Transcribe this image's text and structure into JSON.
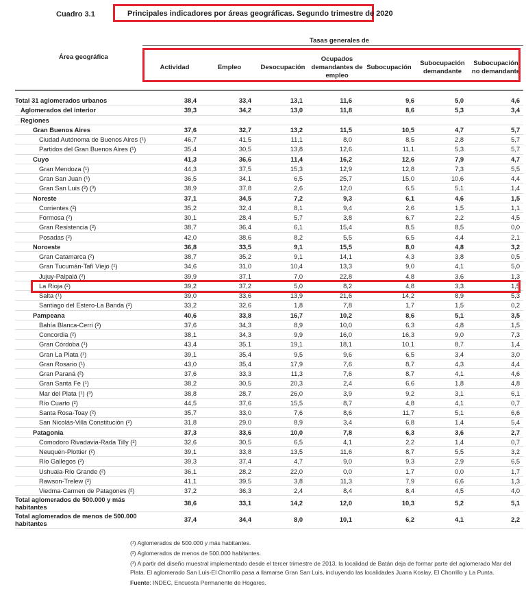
{
  "cuadro": "Cuadro 3.1",
  "title": "Principales indicadores por áreas geográficas. Segundo trimestre de 2020",
  "area_header": "Área geográfica",
  "group_header": "Tasas generales de",
  "columns": [
    "Actividad",
    "Empleo",
    "Desocupación",
    "Ocupados demandantes de empleo",
    "Subocupación",
    "Subocupación demandante",
    "Subocupación no demandante"
  ],
  "rows": [
    {
      "label": "Total 31 aglomerados urbanos",
      "level": 0,
      "bold": true,
      "values": [
        "38,4",
        "33,4",
        "13,1",
        "11,6",
        "9,6",
        "5,0",
        "4,6"
      ]
    },
    {
      "label": "Aglomerados del interior",
      "level": 1,
      "bold": true,
      "values": [
        "39,3",
        "34,2",
        "13,0",
        "11,8",
        "8,6",
        "5,3",
        "3,4"
      ]
    },
    {
      "label": "Regiones",
      "level": 1,
      "bold": true,
      "values": []
    },
    {
      "label": "Gran Buenos Aires",
      "level": 2,
      "bold": true,
      "values": [
        "37,6",
        "32,7",
        "13,2",
        "11,5",
        "10,5",
        "4,7",
        "5,7"
      ]
    },
    {
      "label": "Ciudad Autónoma de Buenos Aires (¹)",
      "level": 3,
      "bold": false,
      "values": [
        "46,7",
        "41,5",
        "11,1",
        "8,0",
        "8,5",
        "2,8",
        "5,7"
      ]
    },
    {
      "label": "Partidos del Gran Buenos Aires (¹)",
      "level": 3,
      "bold": false,
      "values": [
        "35,4",
        "30,5",
        "13,8",
        "12,6",
        "11,1",
        "5,3",
        "5,7"
      ]
    },
    {
      "label": "Cuyo",
      "level": 2,
      "bold": true,
      "values": [
        "41,3",
        "36,6",
        "11,4",
        "16,2",
        "12,6",
        "7,9",
        "4,7"
      ]
    },
    {
      "label": "Gran Mendoza (¹)",
      "level": 3,
      "bold": false,
      "values": [
        "44,3",
        "37,5",
        "15,3",
        "12,9",
        "12,8",
        "7,3",
        "5,5"
      ]
    },
    {
      "label": "Gran San Juan (¹)",
      "level": 3,
      "bold": false,
      "values": [
        "36,5",
        "34,1",
        "6,5",
        "25,7",
        "15,0",
        "10,6",
        "4,4"
      ]
    },
    {
      "label": "Gran San Luis (²) (³)",
      "level": 3,
      "bold": false,
      "values": [
        "38,9",
        "37,8",
        "2,6",
        "12,0",
        "6,5",
        "5,1",
        "1,4"
      ]
    },
    {
      "label": "Noreste",
      "level": 2,
      "bold": true,
      "values": [
        "37,1",
        "34,5",
        "7,2",
        "9,3",
        "6,1",
        "4,6",
        "1,5"
      ]
    },
    {
      "label": "Corrientes (²)",
      "level": 3,
      "bold": false,
      "values": [
        "35,2",
        "32,4",
        "8,1",
        "9,4",
        "2,6",
        "1,5",
        "1,1"
      ]
    },
    {
      "label": "Formosa (²)",
      "level": 3,
      "bold": false,
      "values": [
        "30,1",
        "28,4",
        "5,7",
        "3,8",
        "6,7",
        "2,2",
        "4,5"
      ]
    },
    {
      "label": "Gran Resistencia (²)",
      "level": 3,
      "bold": false,
      "values": [
        "38,7",
        "36,4",
        "6,1",
        "15,4",
        "8,5",
        "8,5",
        "0,0"
      ]
    },
    {
      "label": "Posadas (²)",
      "level": 3,
      "bold": false,
      "values": [
        "42,0",
        "38,6",
        "8,2",
        "5,5",
        "6,5",
        "4,4",
        "2,1"
      ]
    },
    {
      "label": "Noroeste",
      "level": 2,
      "bold": true,
      "values": [
        "36,8",
        "33,5",
        "9,1",
        "15,5",
        "8,0",
        "4,8",
        "3,2"
      ]
    },
    {
      "label": "Gran Catamarca (²)",
      "level": 3,
      "bold": false,
      "values": [
        "38,7",
        "35,2",
        "9,1",
        "14,1",
        "4,3",
        "3,8",
        "0,5"
      ]
    },
    {
      "label": "Gran Tucumán-Tafí Viejo (¹)",
      "level": 3,
      "bold": false,
      "values": [
        "34,6",
        "31,0",
        "10,4",
        "13,3",
        "9,0",
        "4,1",
        "5,0"
      ]
    },
    {
      "label": "Jujuy-Palpalá (²)",
      "level": 3,
      "bold": false,
      "values": [
        "39,9",
        "37,1",
        "7,0",
        "22,8",
        "4,8",
        "3,6",
        "1,3"
      ]
    },
    {
      "label": "La Rioja (²)",
      "level": 3,
      "bold": false,
      "values": [
        "39,2",
        "37,2",
        "5,0",
        "8,2",
        "4,8",
        "3,3",
        "1,5"
      ]
    },
    {
      "label": "Salta (¹)",
      "level": 3,
      "bold": false,
      "values": [
        "39,0",
        "33,6",
        "13,9",
        "21,6",
        "14,2",
        "8,9",
        "5,3"
      ]
    },
    {
      "label": "Santiago del Estero-La Banda (²)",
      "level": 3,
      "bold": false,
      "values": [
        "33,2",
        "32,6",
        "1,8",
        "7,8",
        "1,7",
        "1,5",
        "0,2"
      ]
    },
    {
      "label": "Pampeana",
      "level": 2,
      "bold": true,
      "values": [
        "40,6",
        "33,8",
        "16,7",
        "10,2",
        "8,6",
        "5,1",
        "3,5"
      ]
    },
    {
      "label": "Bahía Blanca-Cerri (²)",
      "level": 3,
      "bold": false,
      "values": [
        "37,6",
        "34,3",
        "8,9",
        "10,0",
        "6,3",
        "4,8",
        "1,5"
      ]
    },
    {
      "label": "Concordia (²)",
      "level": 3,
      "bold": false,
      "values": [
        "38,1",
        "34,3",
        "9,9",
        "16,0",
        "16,3",
        "9,0",
        "7,3"
      ]
    },
    {
      "label": "Gran Córdoba (¹)",
      "level": 3,
      "bold": false,
      "values": [
        "43,4",
        "35,1",
        "19,1",
        "18,1",
        "10,1",
        "8,7",
        "1,4"
      ]
    },
    {
      "label": "Gran La Plata (¹)",
      "level": 3,
      "bold": false,
      "values": [
        "39,1",
        "35,4",
        "9,5",
        "9,6",
        "6,5",
        "3,4",
        "3,0"
      ]
    },
    {
      "label": "Gran Rosario (¹)",
      "level": 3,
      "bold": false,
      "values": [
        "43,0",
        "35,4",
        "17,9",
        "7,6",
        "8,7",
        "4,3",
        "4,4"
      ]
    },
    {
      "label": "Gran Paraná (²)",
      "level": 3,
      "bold": false,
      "values": [
        "37,6",
        "33,3",
        "11,3",
        "7,6",
        "8,7",
        "4,1",
        "4,6"
      ]
    },
    {
      "label": "Gran Santa Fe (¹)",
      "level": 3,
      "bold": false,
      "values": [
        "38,2",
        "30,5",
        "20,3",
        "2,4",
        "6,6",
        "1,8",
        "4,8"
      ]
    },
    {
      "label": "Mar del Plata (¹) (³)",
      "level": 3,
      "bold": false,
      "values": [
        "38,8",
        "28,7",
        "26,0",
        "3,9",
        "9,2",
        "3,1",
        "6,1"
      ]
    },
    {
      "label": "Río Cuarto (²)",
      "level": 3,
      "bold": false,
      "values": [
        "44,5",
        "37,6",
        "15,5",
        "8,7",
        "4,8",
        "4,1",
        "0,7"
      ]
    },
    {
      "label": "Santa Rosa-Toay (²)",
      "level": 3,
      "bold": false,
      "values": [
        "35,7",
        "33,0",
        "7,6",
        "8,6",
        "11,7",
        "5,1",
        "6,6"
      ]
    },
    {
      "label": "San Nicolás-Villa Constitución (²)",
      "level": 3,
      "bold": false,
      "values": [
        "31,8",
        "29,0",
        "8,9",
        "3,4",
        "6,8",
        "1,4",
        "5,4"
      ]
    },
    {
      "label": "Patagonia",
      "level": 2,
      "bold": true,
      "values": [
        "37,3",
        "33,6",
        "10,0",
        "7,8",
        "6,3",
        "3,6",
        "2,7"
      ]
    },
    {
      "label": "Comodoro Rivadavia-Rada Tilly (²)",
      "level": 3,
      "bold": false,
      "values": [
        "32,6",
        "30,5",
        "6,5",
        "4,1",
        "2,2",
        "1,4",
        "0,7"
      ]
    },
    {
      "label": "Neuquén-Plottier (²)",
      "level": 3,
      "bold": false,
      "values": [
        "39,1",
        "33,8",
        "13,5",
        "11,6",
        "8,7",
        "5,5",
        "3,2"
      ]
    },
    {
      "label": "Río Gallegos (²)",
      "level": 3,
      "bold": false,
      "values": [
        "39,3",
        "37,4",
        "4,7",
        "9,0",
        "9,3",
        "2,9",
        "6,5"
      ]
    },
    {
      "label": "Ushuaia-Río Grande (²)",
      "level": 3,
      "bold": false,
      "values": [
        "36,1",
        "28,2",
        "22,0",
        "0,0",
        "1,7",
        "0,0",
        "1,7"
      ]
    },
    {
      "label": "Rawson-Trelew (²)",
      "level": 3,
      "bold": false,
      "values": [
        "41,1",
        "39,5",
        "3,8",
        "11,3",
        "7,9",
        "6,6",
        "1,3"
      ]
    },
    {
      "label": "Viedma-Carmen de Patagones (²)",
      "level": 3,
      "bold": false,
      "values": [
        "37,2",
        "36,3",
        "2,4",
        "8,4",
        "8,4",
        "4,5",
        "4,0"
      ]
    },
    {
      "label": "Total aglomerados de 500.000 y más habitantes",
      "level": 0,
      "bold": true,
      "double": true,
      "values": [
        "38,6",
        "33,1",
        "14,2",
        "12,0",
        "10,3",
        "5,2",
        "5,1"
      ]
    },
    {
      "label": "Total aglomerados de menos de 500.000 habitantes",
      "level": 0,
      "bold": true,
      "double": true,
      "values": [
        "37,4",
        "34,4",
        "8,0",
        "10,1",
        "6,2",
        "4,1",
        "2,2"
      ]
    }
  ],
  "notes": [
    "(¹) Aglomerados de 500.000 y más habitantes.",
    "(²) Aglomerados de menos de 500.000 habitantes.",
    "(³) A partir del diseño muestral implementado desde el tercer trimestre de 2013, la localidad de Batán deja de formar parte del aglomerado Mar del Plata. El aglomerado San Luis-El Chorrillo pasa a llamarse Gran San Luis, incluyendo las localidades Juana Koslay, El Chorrillo y La Punta."
  ],
  "source_label": "Fuente",
  "source_text": ": INDEC, Encuesta Permanente de Hogares.",
  "highlight_color": "#e3222d"
}
